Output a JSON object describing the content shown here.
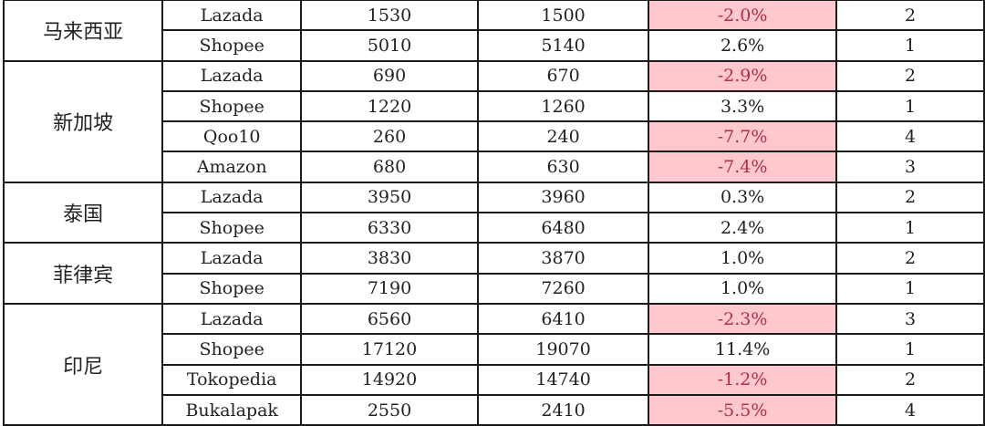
{
  "colors": {
    "negative_fill": "#ffc7ce",
    "negative_text": "#b0304a"
  },
  "groups": [
    {
      "country": "马来西亚",
      "rows": [
        {
          "platform": "Lazada",
          "v1": "1530",
          "v2": "1500",
          "change": "-2.0%",
          "negative": true,
          "rank": "2"
        },
        {
          "platform": "Shopee",
          "v1": "5010",
          "v2": "5140",
          "change": "2.6%",
          "negative": false,
          "rank": "1"
        }
      ]
    },
    {
      "country": "新加坡",
      "rows": [
        {
          "platform": "Lazada",
          "v1": "690",
          "v2": "670",
          "change": "-2.9%",
          "negative": true,
          "rank": "2"
        },
        {
          "platform": "Shopee",
          "v1": "1220",
          "v2": "1260",
          "change": "3.3%",
          "negative": false,
          "rank": "1"
        },
        {
          "platform": "Qoo10",
          "v1": "260",
          "v2": "240",
          "change": "-7.7%",
          "negative": true,
          "rank": "4"
        },
        {
          "platform": "Amazon",
          "v1": "680",
          "v2": "630",
          "change": "-7.4%",
          "negative": true,
          "rank": "3"
        }
      ]
    },
    {
      "country": "泰国",
      "rows": [
        {
          "platform": "Lazada",
          "v1": "3950",
          "v2": "3960",
          "change": "0.3%",
          "negative": false,
          "rank": "2"
        },
        {
          "platform": "Shopee",
          "v1": "6330",
          "v2": "6480",
          "change": "2.4%",
          "negative": false,
          "rank": "1"
        }
      ]
    },
    {
      "country": "菲律宾",
      "rows": [
        {
          "platform": "Lazada",
          "v1": "3830",
          "v2": "3870",
          "change": "1.0%",
          "negative": false,
          "rank": "2"
        },
        {
          "platform": "Shopee",
          "v1": "7190",
          "v2": "7260",
          "change": "1.0%",
          "negative": false,
          "rank": "1"
        }
      ]
    },
    {
      "country": "印尼",
      "rows": [
        {
          "platform": "Lazada",
          "v1": "6560",
          "v2": "6410",
          "change": "-2.3%",
          "negative": true,
          "rank": "3"
        },
        {
          "platform": "Shopee",
          "v1": "17120",
          "v2": "19070",
          "change": "11.4%",
          "negative": false,
          "rank": "1"
        },
        {
          "platform": "Tokopedia",
          "v1": "14920",
          "v2": "14740",
          "change": "-1.2%",
          "negative": true,
          "rank": "2"
        },
        {
          "platform": "Bukalapak",
          "v1": "2550",
          "v2": "2410",
          "change": "-5.5%",
          "negative": true,
          "rank": "4"
        }
      ]
    }
  ]
}
